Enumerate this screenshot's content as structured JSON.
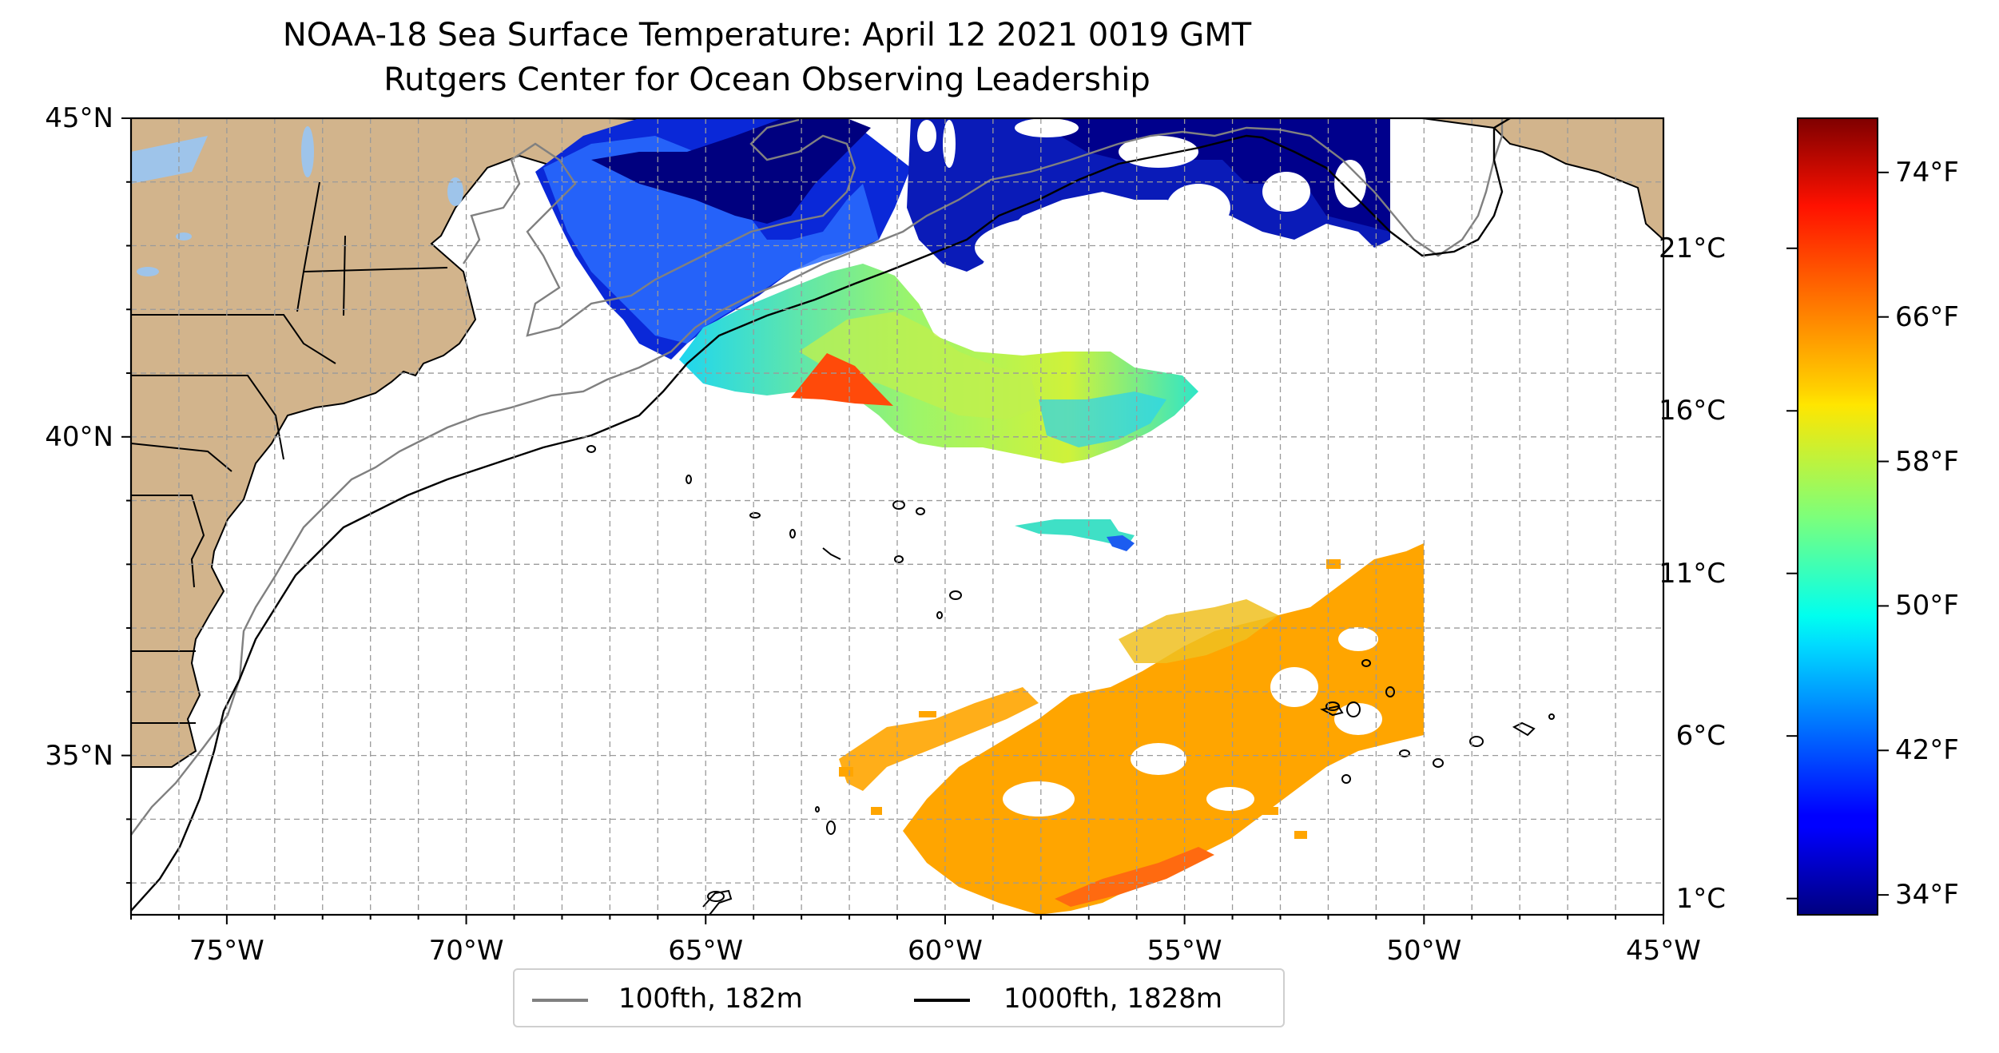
{
  "title": {
    "line1": "NOAA-18 Sea Surface Temperature: April 12 2021 0019 GMT",
    "line2": "Rutgers Center for Ocean Observing Leadership"
  },
  "map": {
    "extent_lon": [
      -77,
      -45
    ],
    "extent_lat": [
      32.5,
      45
    ],
    "lat_ticks": [
      {
        "value": 45,
        "label": "45°N"
      },
      {
        "value": 40,
        "label": "40°N"
      },
      {
        "value": 35,
        "label": "35°N"
      }
    ],
    "lon_ticks": [
      {
        "value": -75,
        "label": "75°W"
      },
      {
        "value": -70,
        "label": "70°W"
      },
      {
        "value": -65,
        "label": "65°W"
      },
      {
        "value": -60,
        "label": "60°W"
      },
      {
        "value": -55,
        "label": "55°W"
      },
      {
        "value": -50,
        "label": "50°W"
      },
      {
        "value": -45,
        "label": "45°W"
      }
    ],
    "gridlines": true,
    "land_color": "#d2b48c",
    "lake_color": "#9ec4ea",
    "no_data_color": "#ffffff"
  },
  "colorbar": {
    "colormap": "jet",
    "range_celsius": [
      0.5,
      25
    ],
    "celsius_ticks": [
      {
        "value": 1,
        "label": "1°C"
      },
      {
        "value": 6,
        "label": "6°C"
      },
      {
        "value": 11,
        "label": "11°C"
      },
      {
        "value": 16,
        "label": "16°C"
      },
      {
        "value": 21,
        "label": "21°C"
      }
    ],
    "fahrenheit_ticks": [
      {
        "value": 34,
        "label": "34°F"
      },
      {
        "value": 42,
        "label": "42°F"
      },
      {
        "value": 50,
        "label": "50°F"
      },
      {
        "value": 58,
        "label": "58°F"
      },
      {
        "value": 66,
        "label": "66°F"
      },
      {
        "value": 74,
        "label": "74°F"
      }
    ]
  },
  "legend": {
    "placement": "bottom-center",
    "items": [
      {
        "label": "100fth, 182m",
        "color": "#808080"
      },
      {
        "label": "1000fth, 1828m",
        "color": "#000000"
      }
    ]
  }
}
